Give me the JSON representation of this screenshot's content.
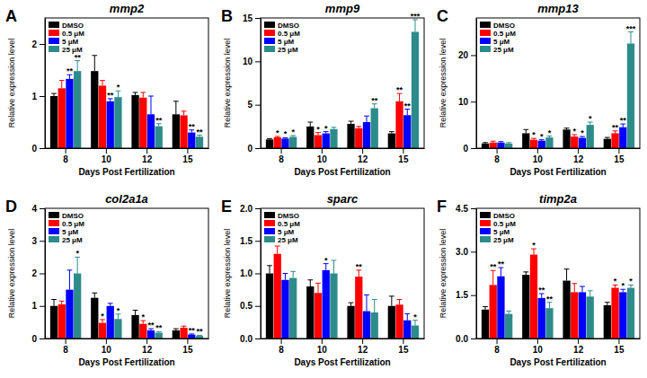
{
  "chart_data": [
    {
      "type": "bar",
      "panel_label": "A",
      "title": "mmp2",
      "x_label": "Days Post Fertilization",
      "y_label": "Relative expression level",
      "categories": [
        "8",
        "10",
        "12",
        "15"
      ],
      "ylim": [
        0,
        2.5
      ],
      "yticks": [
        0,
        1,
        2
      ],
      "legend": "top-left",
      "series": [
        {
          "name": "DMSO",
          "color": "#000000",
          "values": [
            1.0,
            1.48,
            1.02,
            0.65
          ],
          "errors": [
            0.05,
            0.3,
            0.05,
            0.25
          ],
          "significance": [
            null,
            null,
            null,
            null
          ]
        },
        {
          "name": "0.5 μM",
          "color": "#ff0000",
          "values": [
            1.15,
            1.2,
            0.97,
            0.63
          ],
          "errors": [
            0.15,
            0.1,
            0.1,
            0.08
          ],
          "significance": [
            null,
            null,
            null,
            null
          ]
        },
        {
          "name": "5 μM",
          "color": "#0000ff",
          "values": [
            1.33,
            0.9,
            0.65,
            0.3
          ],
          "errors": [
            0.08,
            0.05,
            0.35,
            0.05
          ],
          "significance": [
            "**",
            "**",
            null,
            "**"
          ]
        },
        {
          "name": "25 μM",
          "color": "#2e8b8b",
          "values": [
            1.48,
            0.98,
            0.42,
            0.22
          ],
          "errors": [
            0.2,
            0.12,
            0.05,
            0.03
          ],
          "significance": [
            "**",
            "*",
            "**",
            "**"
          ]
        }
      ]
    },
    {
      "type": "bar",
      "panel_label": "B",
      "title": "mmp9",
      "x_label": "Days Post Fertilization",
      "y_label": "Relative expression level",
      "categories": [
        "8",
        "10",
        "12",
        "15"
      ],
      "ylim": [
        0,
        15
      ],
      "yticks": [
        0,
        5,
        10,
        15
      ],
      "legend": "top-left",
      "series": [
        {
          "name": "DMSO",
          "color": "#000000",
          "values": [
            1.0,
            2.5,
            2.8,
            1.7
          ],
          "errors": [
            0.1,
            0.5,
            0.3,
            0.2
          ],
          "significance": [
            null,
            null,
            null,
            null
          ]
        },
        {
          "name": "0.5 μM",
          "color": "#ff0000",
          "values": [
            1.25,
            1.5,
            2.3,
            5.4
          ],
          "errors": [
            0.1,
            0.3,
            0.2,
            0.9
          ],
          "significance": [
            "*",
            "*",
            null,
            "**"
          ]
        },
        {
          "name": "5 μM",
          "color": "#0000ff",
          "values": [
            1.1,
            1.7,
            3.0,
            3.8
          ],
          "errors": [
            0.1,
            0.2,
            0.7,
            0.7
          ],
          "significance": [
            "*",
            "*",
            null,
            "**"
          ]
        },
        {
          "name": "25 μM",
          "color": "#2e8b8b",
          "values": [
            1.3,
            2.2,
            4.6,
            13.4
          ],
          "errors": [
            0.15,
            0.2,
            0.5,
            1.4
          ],
          "significance": [
            "*",
            null,
            "**",
            "***"
          ]
        }
      ]
    },
    {
      "type": "bar",
      "panel_label": "C",
      "title": "mmp13",
      "x_label": "Days Post Fertilization",
      "y_label": "Relative expression level",
      "categories": [
        "8",
        "10",
        "12",
        "15"
      ],
      "ylim": [
        0,
        28
      ],
      "yticks": [
        0,
        10,
        20
      ],
      "legend": "top-left",
      "series": [
        {
          "name": "DMSO",
          "color": "#000000",
          "values": [
            1.0,
            3.2,
            4.0,
            2.0
          ],
          "errors": [
            0.2,
            0.8,
            0.3,
            0.3
          ],
          "significance": [
            null,
            null,
            null,
            null
          ]
        },
        {
          "name": "0.5 μM",
          "color": "#ff0000",
          "values": [
            1.2,
            1.8,
            2.5,
            3.2
          ],
          "errors": [
            0.3,
            0.3,
            0.4,
            0.5
          ],
          "significance": [
            null,
            "*",
            "*",
            "**"
          ]
        },
        {
          "name": "5 μM",
          "color": "#0000ff",
          "values": [
            1.2,
            1.6,
            2.2,
            4.5
          ],
          "errors": [
            0.2,
            0.2,
            0.3,
            0.7
          ],
          "significance": [
            null,
            "*",
            "*",
            "**"
          ]
        },
        {
          "name": "25 μM",
          "color": "#2e8b8b",
          "values": [
            1.0,
            2.3,
            5.0,
            22.5
          ],
          "errors": [
            0.2,
            0.3,
            0.6,
            2.5
          ],
          "significance": [
            null,
            "*",
            "*",
            "***"
          ]
        }
      ]
    },
    {
      "type": "bar",
      "panel_label": "D",
      "title": "col2a1a",
      "x_label": "Days Post Fertilization",
      "y_label": "Relative expression level",
      "categories": [
        "8",
        "10",
        "12",
        "15"
      ],
      "ylim": [
        0,
        4
      ],
      "yticks": [
        0,
        1,
        2,
        3,
        4
      ],
      "legend": "top-left",
      "series": [
        {
          "name": "DMSO",
          "color": "#000000",
          "values": [
            1.0,
            1.25,
            0.72,
            0.25
          ],
          "errors": [
            0.2,
            0.15,
            0.15,
            0.05
          ],
          "significance": [
            null,
            null,
            null,
            null
          ]
        },
        {
          "name": "0.5 μM",
          "color": "#ff0000",
          "values": [
            1.05,
            0.48,
            0.45,
            0.33
          ],
          "errors": [
            0.1,
            0.1,
            0.1,
            0.05
          ],
          "significance": [
            null,
            "*",
            "*",
            null
          ]
        },
        {
          "name": "5 μM",
          "color": "#0000ff",
          "values": [
            1.5,
            1.0,
            0.25,
            0.12
          ],
          "errors": [
            0.6,
            0.08,
            0.05,
            0.02
          ],
          "significance": [
            null,
            null,
            "**",
            "**"
          ]
        },
        {
          "name": "25 μM",
          "color": "#2e8b8b",
          "values": [
            2.0,
            0.6,
            0.18,
            0.08
          ],
          "errors": [
            0.5,
            0.15,
            0.03,
            0.02
          ],
          "significance": [
            "*",
            "*",
            "**",
            "**"
          ]
        }
      ]
    },
    {
      "type": "bar",
      "panel_label": "E",
      "title": "sparc",
      "x_label": "Days Post Fertilization",
      "y_label": "Relative expression level",
      "categories": [
        "8",
        "10",
        "12",
        "15"
      ],
      "ylim": [
        0,
        2
      ],
      "yticks": [
        {
          "value": 0,
          "label": "0.0"
        },
        {
          "value": 0.5,
          "label": "0.5"
        },
        {
          "value": 1,
          "label": "1.0"
        },
        {
          "value": 1.5,
          "label": "1.5"
        },
        {
          "value": 2,
          "label": "2.0"
        }
      ],
      "legend": "top-left",
      "series": [
        {
          "name": "DMSO",
          "color": "#000000",
          "values": [
            1.0,
            0.8,
            0.5,
            0.5
          ],
          "errors": [
            0.12,
            0.1,
            0.05,
            0.15
          ],
          "significance": [
            null,
            null,
            null,
            null
          ]
        },
        {
          "name": "0.5 μM",
          "color": "#ff0000",
          "values": [
            1.3,
            0.7,
            0.95,
            0.52
          ],
          "errors": [
            0.12,
            0.15,
            0.1,
            0.08
          ],
          "significance": [
            null,
            null,
            "**",
            null
          ]
        },
        {
          "name": "5 μM",
          "color": "#0000ff",
          "values": [
            0.9,
            1.05,
            0.42,
            0.28
          ],
          "errors": [
            0.1,
            0.1,
            0.25,
            0.1
          ],
          "significance": [
            null,
            "*",
            null,
            null
          ]
        },
        {
          "name": "25 μM",
          "color": "#2e8b8b",
          "values": [
            0.93,
            1.0,
            0.4,
            0.2
          ],
          "errors": [
            0.1,
            0.2,
            0.2,
            0.08
          ],
          "significance": [
            null,
            null,
            null,
            "*"
          ]
        }
      ]
    },
    {
      "type": "bar",
      "panel_label": "F",
      "title": "timp2a",
      "x_label": "Days Post Fertilization",
      "y_label": "Relative expression level",
      "categories": [
        "8",
        "10",
        "12",
        "15"
      ],
      "ylim": [
        0,
        4.5
      ],
      "yticks": [
        {
          "value": 0,
          "label": "0.0"
        },
        {
          "value": 1.5,
          "label": "1.5"
        },
        {
          "value": 3,
          "label": "3.0"
        },
        {
          "value": 4.5,
          "label": "4.5"
        }
      ],
      "legend": "top-left",
      "series": [
        {
          "name": "DMSO",
          "color": "#000000",
          "values": [
            1.0,
            2.2,
            2.0,
            1.15
          ],
          "errors": [
            0.1,
            0.1,
            0.4,
            0.1
          ],
          "significance": [
            null,
            null,
            null,
            null
          ]
        },
        {
          "name": "0.5 μM",
          "color": "#ff0000",
          "values": [
            1.85,
            2.9,
            1.6,
            1.75
          ],
          "errors": [
            0.5,
            0.2,
            0.3,
            0.1
          ],
          "significance": [
            "**",
            "*",
            null,
            "*"
          ]
        },
        {
          "name": "5 μM",
          "color": "#0000ff",
          "values": [
            2.15,
            1.4,
            1.6,
            1.6
          ],
          "errors": [
            0.3,
            0.15,
            0.2,
            0.1
          ],
          "significance": [
            "**",
            "**",
            null,
            "*"
          ]
        },
        {
          "name": "25 μM",
          "color": "#2e8b8b",
          "values": [
            0.85,
            1.05,
            1.45,
            1.75
          ],
          "errors": [
            0.1,
            0.2,
            0.2,
            0.1
          ],
          "significance": [
            null,
            "**",
            null,
            "*"
          ]
        }
      ]
    }
  ]
}
